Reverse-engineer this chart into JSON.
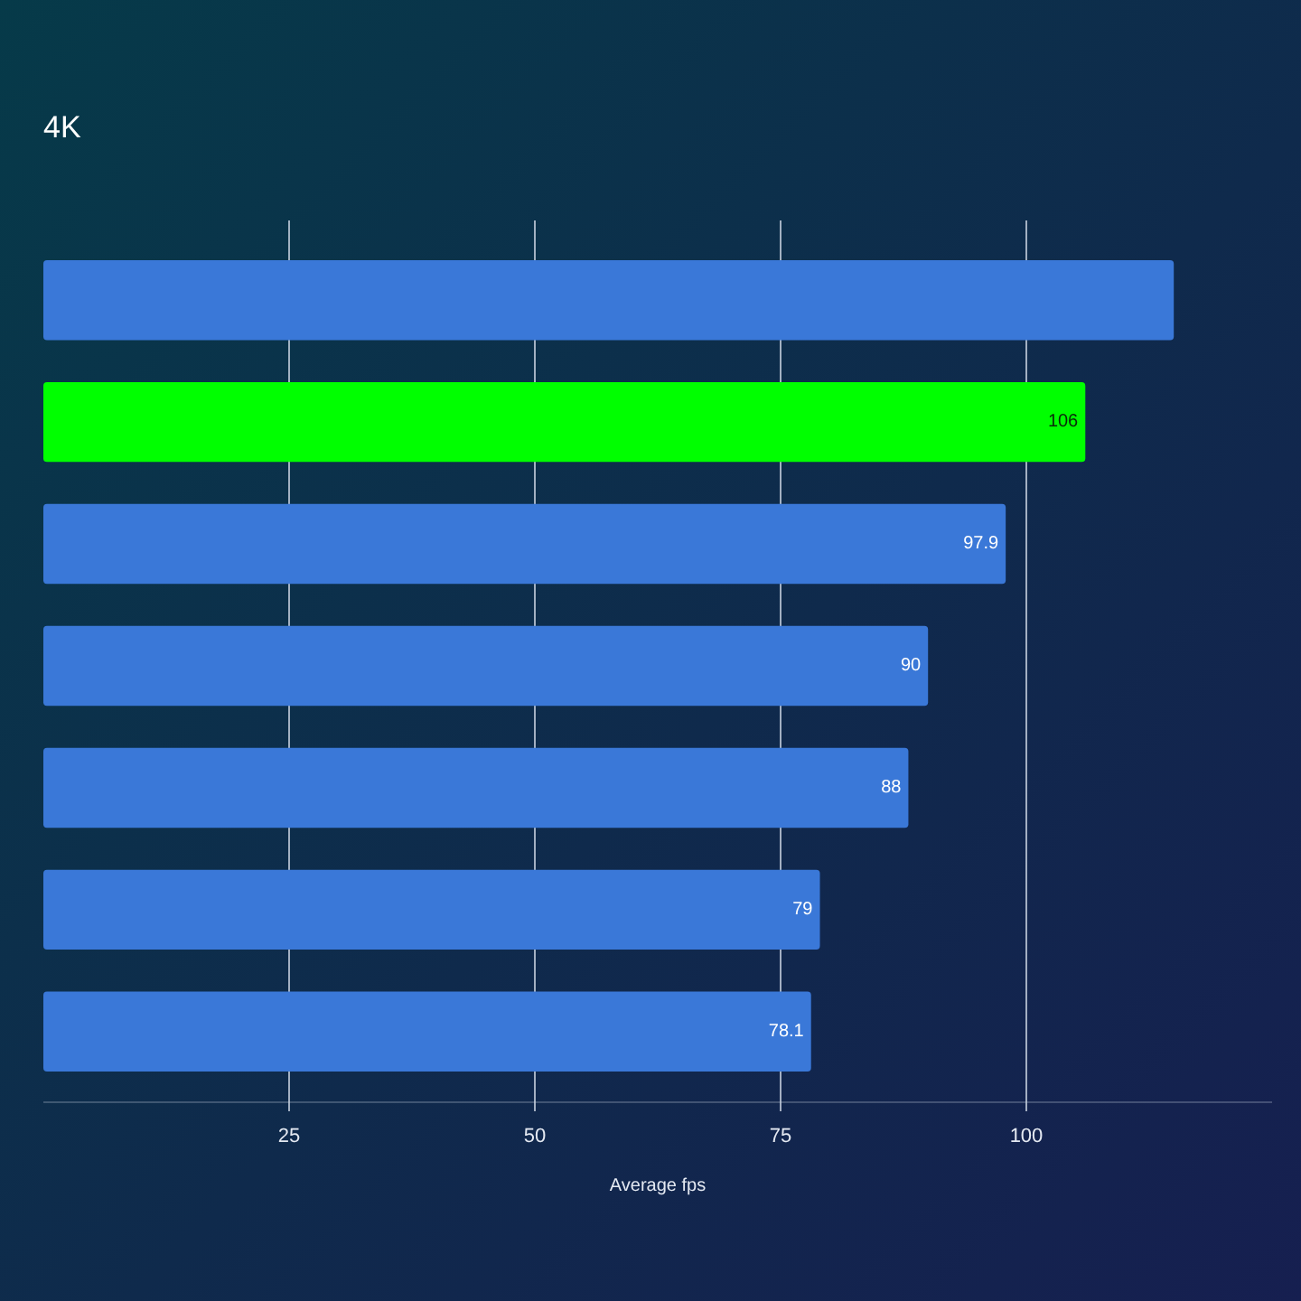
{
  "chart_data": {
    "type": "bar",
    "orientation": "horizontal",
    "title": "4K",
    "xlabel": "Average fps",
    "categories": [
      null,
      null,
      null,
      null,
      null,
      null,
      null
    ],
    "values": [
      115,
      106,
      97.9,
      90,
      88,
      79,
      78.1
    ],
    "colors": [
      "#3a78d8",
      "#00ff00",
      "#3a78d8",
      "#3a78d8",
      "#3a78d8",
      "#3a78d8",
      "#3a78d8"
    ],
    "value_labels": [
      null,
      "106",
      "97.9",
      "90",
      "88",
      "79",
      "78.1"
    ],
    "xlim": [
      0,
      125
    ],
    "xticks": [
      25,
      50,
      75,
      100
    ],
    "grid": "x"
  }
}
